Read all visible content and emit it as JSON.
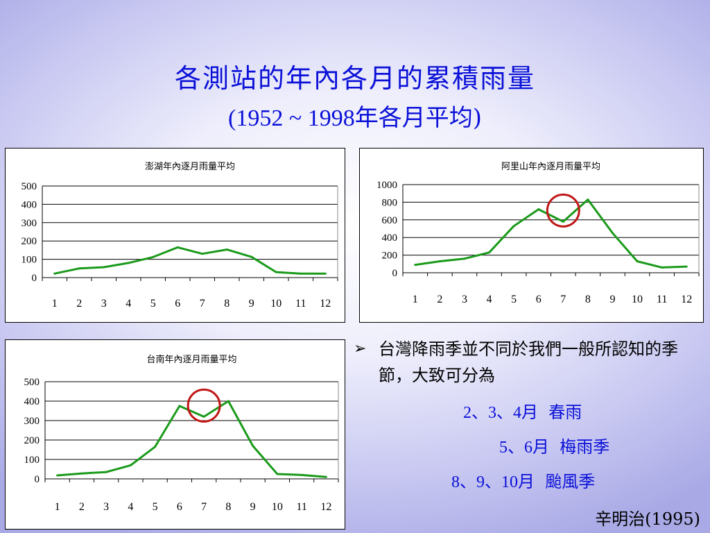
{
  "slide": {
    "title": "各測站的年內各月的累積雨量",
    "subtitle_latin": "(1952 ~ 1998",
    "subtitle_cjk": "年各月平均)",
    "bullet": "台灣降雨季並不同於我們一般所認知的季節，大致可分為",
    "seasons": [
      {
        "months": "2、3、4月",
        "name": "春雨"
      },
      {
        "months": "5、6月",
        "name": "梅雨季"
      },
      {
        "months": "8、9、10月",
        "name": "颱風季"
      }
    ],
    "credit": "辛明治(1995)"
  },
  "colors": {
    "title": "#0a10d8",
    "line": "#1a9a1a",
    "circle": "#c01818"
  },
  "chart_data": [
    {
      "type": "line",
      "title": "澎湖年內逐月雨量平均",
      "x": [
        "1",
        "2",
        "3",
        "4",
        "5",
        "6",
        "7",
        "8",
        "9",
        "10",
        "11",
        "12"
      ],
      "values": [
        22,
        50,
        57,
        80,
        112,
        165,
        130,
        153,
        113,
        30,
        22,
        22
      ],
      "ylim": [
        0,
        500
      ],
      "yticks": [
        0,
        100,
        200,
        300,
        400,
        500
      ],
      "grid": true,
      "annotation": null
    },
    {
      "type": "line",
      "title": "阿里山年內逐月雨量平均",
      "x": [
        "1",
        "2",
        "3",
        "4",
        "5",
        "6",
        "7",
        "8",
        "9",
        "10",
        "11",
        "12"
      ],
      "values": [
        90,
        130,
        160,
        230,
        530,
        720,
        580,
        830,
        450,
        130,
        60,
        70
      ],
      "ylim": [
        0,
        1000
      ],
      "yticks": [
        0,
        200,
        400,
        600,
        800,
        1000
      ],
      "grid": true,
      "annotation": {
        "shape": "circle",
        "x": 7
      }
    },
    {
      "type": "line",
      "title": "台南年內逐月雨量平均",
      "x": [
        "1",
        "2",
        "3",
        "4",
        "5",
        "6",
        "7",
        "8",
        "9",
        "10",
        "11",
        "12"
      ],
      "values": [
        18,
        28,
        35,
        70,
        165,
        375,
        320,
        400,
        170,
        25,
        20,
        10
      ],
      "ylim": [
        0,
        500
      ],
      "yticks": [
        0,
        100,
        200,
        300,
        400,
        500
      ],
      "grid": true,
      "annotation": {
        "shape": "circle",
        "x": 7
      }
    }
  ]
}
